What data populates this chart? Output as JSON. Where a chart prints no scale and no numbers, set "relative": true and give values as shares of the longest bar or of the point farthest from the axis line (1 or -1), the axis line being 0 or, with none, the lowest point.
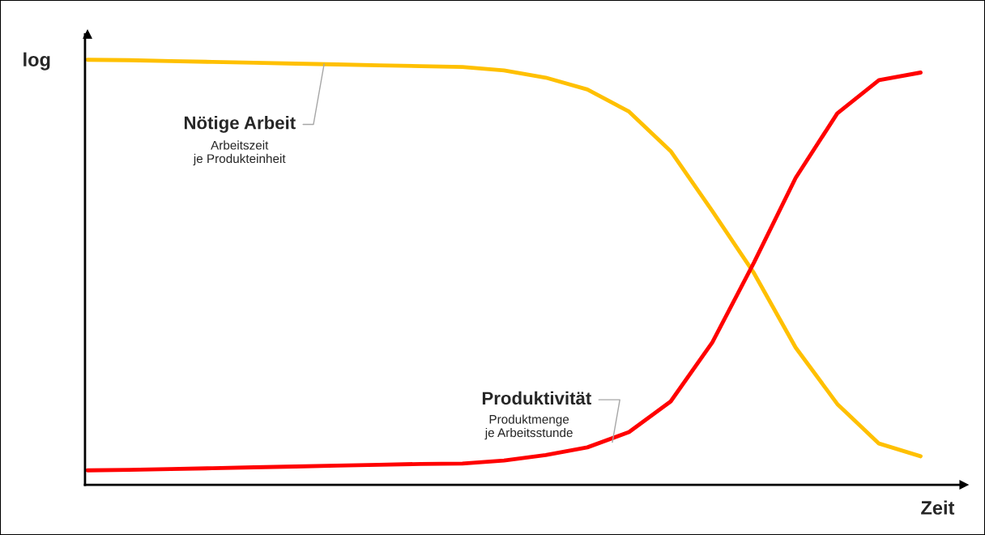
{
  "chart_data": {
    "type": "line",
    "relative": true,
    "xlabel": "Zeit",
    "ylabel": "log",
    "categories": [
      null,
      null,
      null,
      null,
      null,
      null,
      null,
      null,
      null,
      null,
      null,
      null,
      null,
      null,
      null,
      null,
      null,
      null,
      null,
      null,
      null
    ],
    "series": [
      {
        "name": "Nötige Arbeit",
        "color": "#ffc000",
        "values": [
          1.0,
          0.999,
          0.997,
          0.995,
          0.993,
          0.991,
          0.989,
          0.987,
          0.985,
          0.983,
          0.975,
          0.958,
          0.93,
          0.878,
          0.785,
          0.644,
          0.498,
          0.323,
          0.19,
          0.097,
          0.067
        ]
      },
      {
        "name": "Produktivität",
        "color": "#ff0000",
        "values": [
          0.034,
          0.035,
          0.037,
          0.039,
          0.041,
          0.043,
          0.045,
          0.047,
          0.049,
          0.05,
          0.057,
          0.07,
          0.088,
          0.124,
          0.196,
          0.335,
          0.523,
          0.722,
          0.874,
          0.952,
          0.97
        ]
      }
    ],
    "annotations": [
      "Arbeitszeit\nje Produkteinheit",
      "Produktmenge\nje Arbeitsstunde"
    ],
    "legend": false,
    "marker": "none",
    "line_style": "solid"
  }
}
